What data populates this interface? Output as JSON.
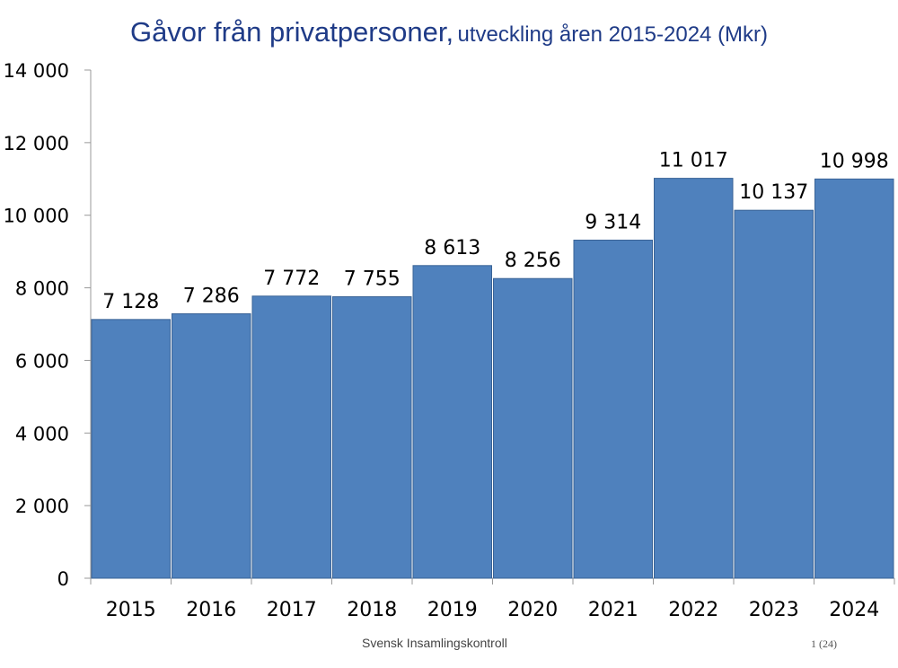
{
  "title": {
    "main": "Gåvor från privatpersoner,",
    "sub": "utveckling åren 2015-2024 (Mkr)"
  },
  "footer": {
    "source": "Svensk Insamlingskontroll",
    "page": "1 (24)"
  },
  "colors": {
    "bar": "#4f81bd",
    "title": "#1f3b87"
  },
  "chart_data": {
    "type": "bar",
    "title": "Gåvor från privatpersoner, utveckling åren 2015-2024 (Mkr)",
    "xlabel": "",
    "ylabel": "",
    "categories": [
      "2015",
      "2016",
      "2017",
      "2018",
      "2019",
      "2020",
      "2021",
      "2022",
      "2023",
      "2024"
    ],
    "values": [
      7128,
      7286,
      7772,
      7755,
      8613,
      8256,
      9314,
      11017,
      10137,
      10998
    ],
    "value_labels": [
      "7 128",
      "7 286",
      "7 772",
      "7 755",
      "8 613",
      "8 256",
      "9 314",
      "11 017",
      "10 137",
      "10 998"
    ],
    "ylim": [
      0,
      14000
    ],
    "yticks": [
      0,
      2000,
      4000,
      6000,
      8000,
      10000,
      12000,
      14000
    ],
    "ytick_labels": [
      "0",
      "2 000",
      "4 000",
      "6 000",
      "8 000",
      "10 000",
      "12 000",
      "14 000"
    ],
    "grid": false,
    "legend": "none"
  }
}
